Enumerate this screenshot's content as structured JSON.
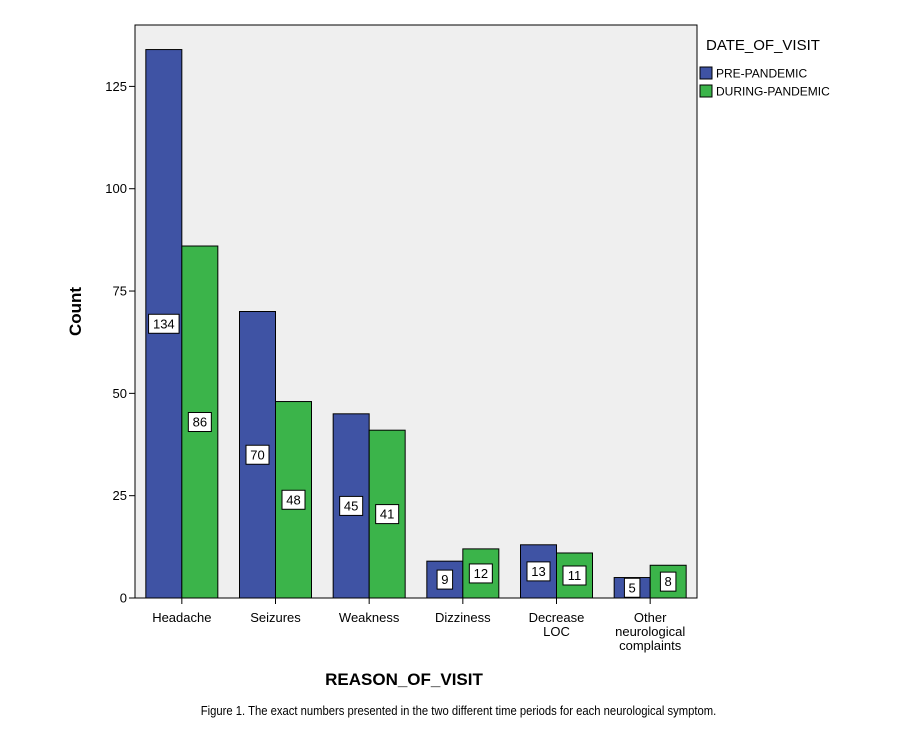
{
  "chart_data": {
    "type": "bar",
    "xlabel": "REASON_OF_VISIT",
    "ylabel": "Count",
    "ylim": [
      0,
      140
    ],
    "yticks": [
      0,
      25,
      50,
      75,
      100,
      125
    ],
    "grid": false,
    "legend_position": "right",
    "legend_title": "DATE_OF_VISIT",
    "categories": [
      [
        "Headache"
      ],
      [
        "Seizures"
      ],
      [
        "Weakness"
      ],
      [
        "Dizziness"
      ],
      [
        "Decrease",
        "LOC"
      ],
      [
        "Other",
        "neurological",
        "complaints"
      ]
    ],
    "series": [
      {
        "name": "PRE-PANDEMIC",
        "color": "#3f53a4",
        "values": [
          134,
          70,
          45,
          9,
          13,
          5
        ]
      },
      {
        "name": "DURING-PANDEMIC",
        "color": "#3bb44a",
        "values": [
          86,
          48,
          41,
          12,
          11,
          8
        ]
      }
    ],
    "plot_background": "#efefef"
  },
  "caption": "Figure 1. The exact numbers presented in the two different time periods for each neurological symptom."
}
